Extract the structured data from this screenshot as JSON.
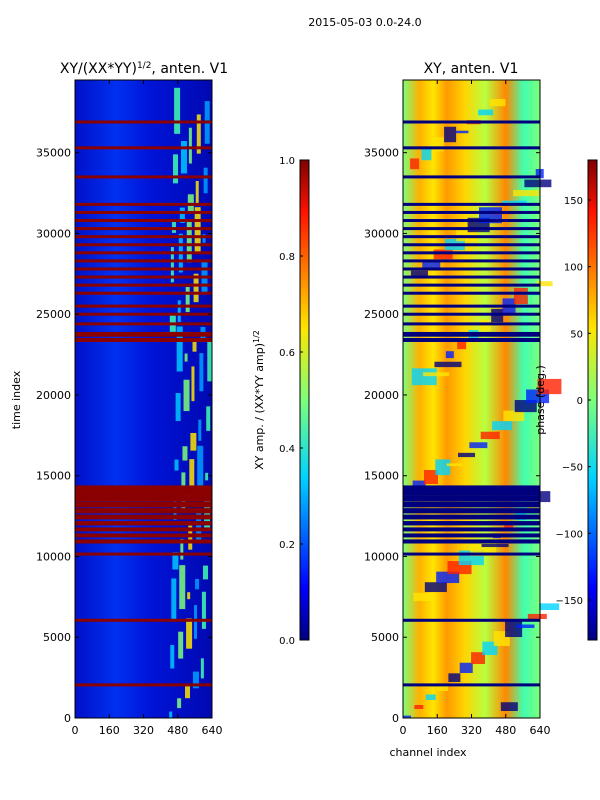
{
  "suptitle": "2015-05-03 0.0-24.0",
  "chart_data": [
    {
      "type": "heatmap",
      "title_main": "XY/(XX*YY)",
      "title_sup": "1/2",
      "title_rest": ", anten. V1",
      "ylabel": "time index",
      "xlim": [
        0,
        640
      ],
      "ylim": [
        0,
        39500
      ],
      "xticks": [
        0,
        160,
        320,
        480,
        640
      ],
      "yticks": [
        0,
        5000,
        10000,
        15000,
        20000,
        25000,
        30000,
        35000
      ],
      "flagged_rows": [
        2050,
        6050,
        10150,
        10900,
        11300,
        11700,
        12100,
        12500,
        12900,
        13300,
        13700,
        14100,
        23400,
        23700,
        24400,
        25000,
        25500,
        26300,
        26800,
        27300,
        27800,
        28300,
        28800,
        29300,
        29800,
        30300,
        30800,
        31300,
        31800,
        33500,
        35300,
        36900
      ],
      "colorbar": {
        "label_main": "XY amp. / (XX*YY amp)",
        "label_sup": "1/2",
        "min": 0.0,
        "max": 1.0,
        "ticks": [
          "0.0",
          "0.2",
          "0.4",
          "0.6",
          "0.8",
          "1.0"
        ]
      }
    },
    {
      "type": "heatmap",
      "title": "XY, anten. V1",
      "xlabel": "channel index",
      "xlim": [
        0,
        640
      ],
      "ylim": [
        0,
        39500
      ],
      "xticks": [
        0,
        160,
        320,
        480,
        640
      ],
      "yticks": [
        0,
        5000,
        10000,
        15000,
        20000,
        25000,
        30000,
        35000
      ],
      "colorbar": {
        "label": "phase (deg.)",
        "min": -180,
        "max": 180,
        "ticks": [
          "150",
          "100",
          "50",
          "0",
          "−50",
          "−100",
          "−150"
        ]
      }
    }
  ]
}
